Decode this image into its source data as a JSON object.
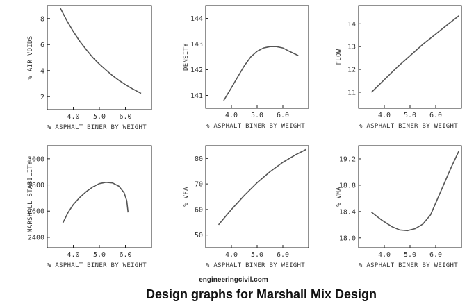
{
  "source": "engineeringcivil.com",
  "caption": "Design graphs for Marshall Mix Design",
  "chart_data": [
    {
      "id": "air-voids",
      "type": "line",
      "xlabel": "% ASPHALT BINER BY WEIGHT",
      "ylabel": "% AIR VOIDS",
      "xlim": [
        3.0,
        7.0
      ],
      "ylim": [
        1.0,
        9.0
      ],
      "xticks": [
        4.0,
        5.0,
        6.0
      ],
      "xtick_labels": [
        "4.0",
        "5.0",
        "6.0"
      ],
      "yticks": [
        2,
        4,
        6,
        8
      ],
      "ytick_labels": [
        "2",
        "4",
        "6",
        "8"
      ],
      "x": [
        3.5,
        3.75,
        4.0,
        4.25,
        4.5,
        4.75,
        5.0,
        5.25,
        5.5,
        5.75,
        6.0,
        6.25,
        6.6
      ],
      "y": [
        8.8,
        7.85,
        7.0,
        6.25,
        5.6,
        5.0,
        4.5,
        4.05,
        3.62,
        3.25,
        2.92,
        2.62,
        2.25
      ]
    },
    {
      "id": "density",
      "type": "line",
      "xlabel": "% ASPHALT BINER BY WEIGHT",
      "ylabel": "DENSITY",
      "xlim": [
        3.0,
        7.0
      ],
      "ylim": [
        140.5,
        144.5
      ],
      "xticks": [
        4.0,
        5.0,
        6.0
      ],
      "xtick_labels": [
        "4.0",
        "5.0",
        "6.0"
      ],
      "yticks": [
        141,
        142,
        143,
        144
      ],
      "ytick_labels": [
        "141",
        "142",
        "143",
        "144"
      ],
      "x": [
        3.7,
        4.0,
        4.5,
        4.75,
        5.0,
        5.25,
        5.5,
        5.75,
        6.0,
        6.25,
        6.6
      ],
      "y": [
        140.8,
        141.3,
        142.15,
        142.5,
        142.72,
        142.85,
        142.9,
        142.9,
        142.85,
        142.72,
        142.55
      ]
    },
    {
      "id": "flow",
      "type": "line",
      "xlabel": "% ASPHALT BINER BY WEIGHT",
      "ylabel": "FLOW",
      "xlim": [
        3.0,
        7.0
      ],
      "ylim": [
        10.3,
        14.8
      ],
      "xticks": [
        4.0,
        5.0,
        6.0
      ],
      "xtick_labels": [
        "4.0",
        "5.0",
        "6.0"
      ],
      "yticks": [
        11,
        12,
        13,
        14
      ],
      "ytick_labels": [
        "11",
        "12",
        "13",
        "14"
      ],
      "x": [
        3.5,
        4.0,
        4.5,
        5.0,
        5.5,
        6.0,
        6.5,
        6.9
      ],
      "y": [
        11.0,
        11.55,
        12.1,
        12.6,
        13.1,
        13.55,
        14.0,
        14.35
      ]
    },
    {
      "id": "stability",
      "type": "line",
      "xlabel": "% ASPHALT BINER BY WEIGHT",
      "ylabel": "MARSHALL STABILITY",
      "xlim": [
        3.0,
        7.0
      ],
      "ylim": [
        2320,
        3100
      ],
      "xticks": [
        4.0,
        5.0,
        6.0
      ],
      "xtick_labels": [
        "4.0",
        "5.0",
        "6.0"
      ],
      "yticks": [
        2400,
        2600,
        2800,
        3000
      ],
      "ytick_labels": [
        "2400",
        "2600",
        "2800",
        "3000"
      ],
      "x": [
        3.6,
        3.8,
        4.0,
        4.25,
        4.5,
        4.75,
        5.0,
        5.25,
        5.5,
        5.75,
        5.95,
        6.05,
        6.1
      ],
      "y": [
        2510,
        2590,
        2650,
        2705,
        2750,
        2785,
        2810,
        2820,
        2815,
        2790,
        2740,
        2680,
        2590
      ]
    },
    {
      "id": "vfa",
      "type": "line",
      "xlabel": "% ASPHALT BINER BY WEIGHT",
      "ylabel": "% VFA",
      "xlim": [
        3.0,
        7.0
      ],
      "ylim": [
        45,
        85
      ],
      "xticks": [
        4.0,
        5.0,
        6.0
      ],
      "xtick_labels": [
        "4.0",
        "5.0",
        "6.0"
      ],
      "yticks": [
        50,
        60,
        70,
        80
      ],
      "ytick_labels": [
        "50",
        "60",
        "70",
        "80"
      ],
      "x": [
        3.5,
        4.0,
        4.5,
        5.0,
        5.5,
        6.0,
        6.5,
        6.9
      ],
      "y": [
        54,
        60,
        65.5,
        70.5,
        74.8,
        78.5,
        81.5,
        83.5
      ]
    },
    {
      "id": "vma",
      "type": "line",
      "xlabel": "% ASPHALT BINER BY WEIGHT",
      "ylabel": "% VMA",
      "xlim": [
        3.0,
        7.0
      ],
      "ylim": [
        17.85,
        19.4
      ],
      "xticks": [
        4.0,
        5.0,
        6.0
      ],
      "xtick_labels": [
        "4.0",
        "5.0",
        "6.0"
      ],
      "yticks": [
        18.0,
        18.4,
        18.8,
        19.2
      ],
      "ytick_labels": [
        "18.0",
        "18.4",
        "18.8",
        "19.2"
      ],
      "x": [
        3.5,
        3.9,
        4.3,
        4.6,
        4.9,
        5.2,
        5.5,
        5.8,
        6.0,
        6.3,
        6.6,
        6.9
      ],
      "y": [
        18.39,
        18.27,
        18.17,
        18.12,
        18.11,
        18.14,
        18.21,
        18.35,
        18.53,
        18.8,
        19.07,
        19.32
      ]
    }
  ]
}
